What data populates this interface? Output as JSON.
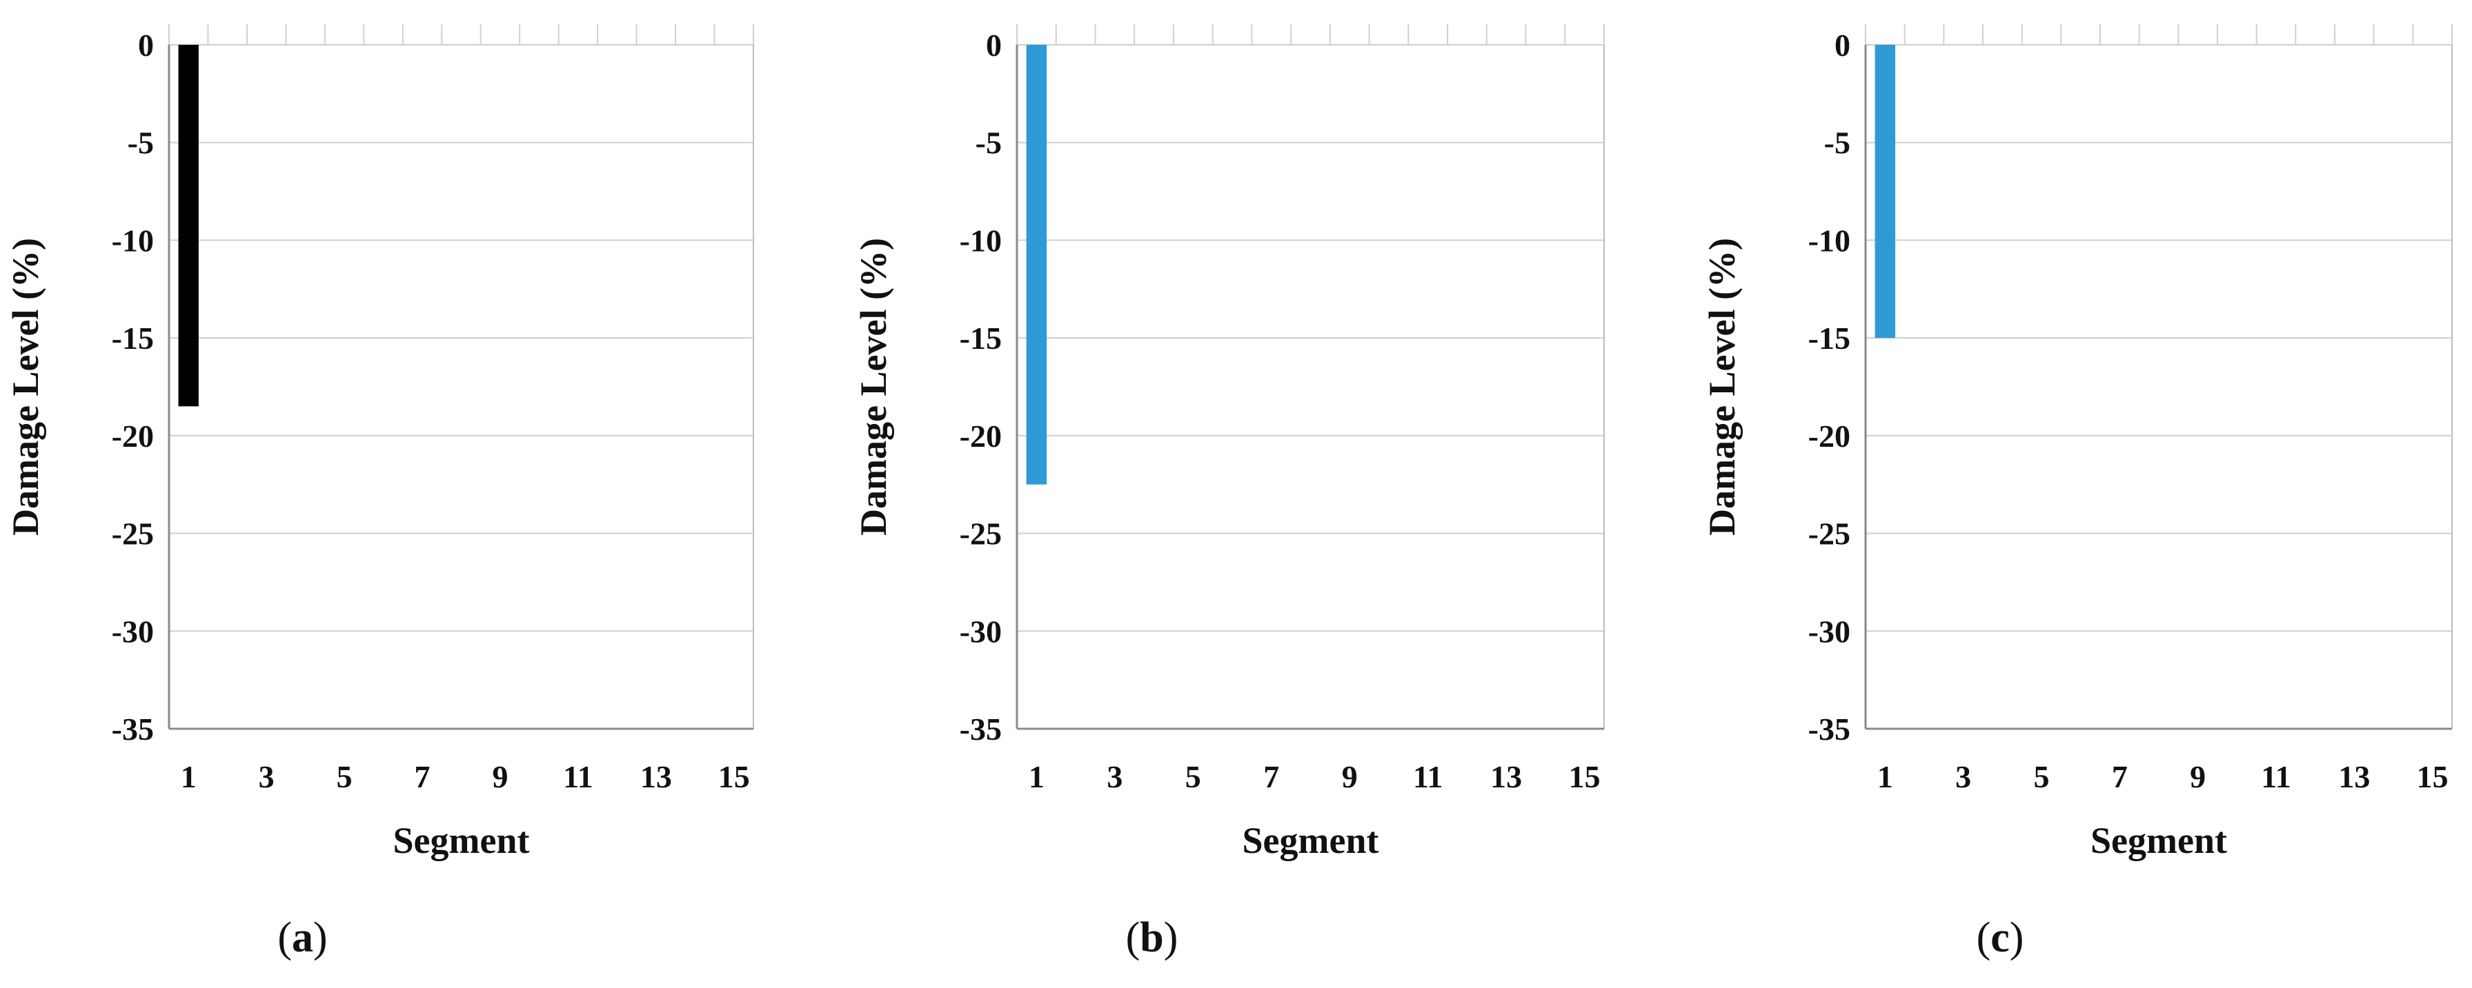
{
  "chart_data": [
    {
      "type": "bar",
      "panel_label": "a",
      "xlabel": "Segment",
      "ylabel": "Damage Level (%)",
      "ylim": [
        -35,
        0
      ],
      "yticks": [
        0,
        -5,
        -10,
        -15,
        -20,
        -25,
        -30,
        -35
      ],
      "x": [
        1,
        2,
        3,
        4,
        5,
        6,
        7,
        8,
        9,
        10,
        11,
        12,
        13,
        14,
        15
      ],
      "xtick_labels": [
        1,
        3,
        5,
        7,
        9,
        11,
        13,
        15
      ],
      "values": [
        -18.5,
        0,
        0,
        0,
        0,
        0,
        0,
        0,
        0,
        0,
        0,
        0,
        0,
        0,
        0
      ],
      "bar_color": "#000000",
      "grid": true,
      "legend": "none"
    },
    {
      "type": "bar",
      "panel_label": "b",
      "xlabel": "Segment",
      "ylabel": "Damage Level (%)",
      "ylim": [
        -35,
        0
      ],
      "yticks": [
        0,
        -5,
        -10,
        -15,
        -20,
        -25,
        -30,
        -35
      ],
      "x": [
        1,
        2,
        3,
        4,
        5,
        6,
        7,
        8,
        9,
        10,
        11,
        12,
        13,
        14,
        15
      ],
      "xtick_labels": [
        1,
        3,
        5,
        7,
        9,
        11,
        13,
        15
      ],
      "values": [
        -22.5,
        0,
        0,
        0,
        0,
        0,
        0,
        0,
        0,
        0,
        0,
        0,
        0,
        0,
        0
      ],
      "bar_color": "#2e9bd6",
      "grid": true,
      "legend": "none"
    },
    {
      "type": "bar",
      "panel_label": "c",
      "xlabel": "Segment",
      "ylabel": "Damage Level (%)",
      "ylim": [
        -35,
        0
      ],
      "yticks": [
        0,
        -5,
        -10,
        -15,
        -20,
        -25,
        -30,
        -35
      ],
      "x": [
        1,
        2,
        3,
        4,
        5,
        6,
        7,
        8,
        9,
        10,
        11,
        12,
        13,
        14,
        15
      ],
      "xtick_labels": [
        1,
        3,
        5,
        7,
        9,
        11,
        13,
        15
      ],
      "values": [
        -15,
        0,
        0,
        0,
        0,
        0,
        0,
        0,
        0,
        0,
        0,
        0,
        0,
        0,
        0
      ],
      "bar_color": "#2e9bd6",
      "grid": true,
      "legend": "none"
    }
  ]
}
